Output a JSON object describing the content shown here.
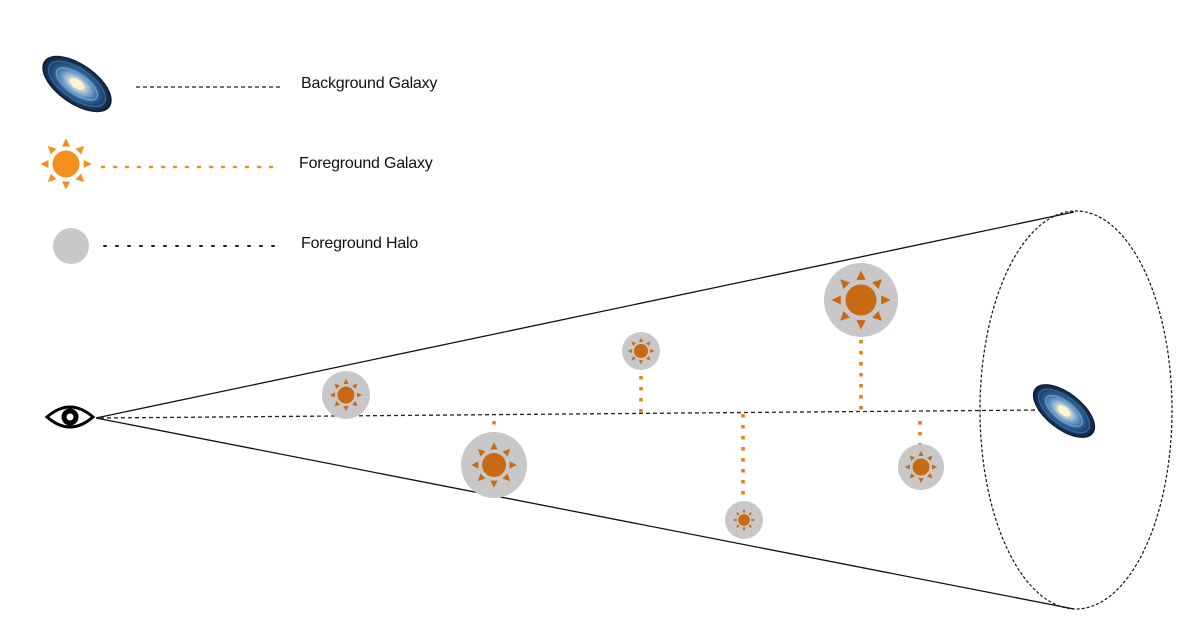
{
  "legend": {
    "items": [
      {
        "label": "Background Galaxy",
        "icon": "spiral-galaxy-icon",
        "line_color": "#222222"
      },
      {
        "label": "Foreground Galaxy",
        "icon": "sun-galaxy-icon",
        "line_color": "#f28a1a"
      },
      {
        "label": "Foreground Halo",
        "icon": "halo-circle-icon",
        "line_color": "#222222"
      }
    ]
  },
  "colors": {
    "halo": "#c8c8c8",
    "foreground_galaxy": "#c86a14",
    "legend_galaxy": "#f5901e",
    "connector": "#e8801e",
    "cone_line": "#111111",
    "galaxy_core": "#ffe6b0",
    "galaxy_arms": "#4a7fb3",
    "galaxy_dark": "#0c1a33"
  }
}
